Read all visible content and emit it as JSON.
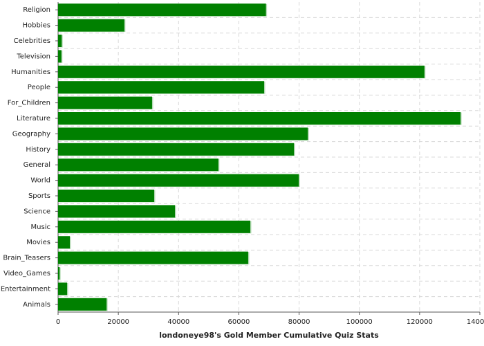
{
  "chart_data": {
    "type": "hbar",
    "xlabel": "londoneye98's Gold Member Cumulative Quiz Stats",
    "categories": [
      "Religion",
      "Hobbies",
      "Celebrities",
      "Television",
      "Humanities",
      "People",
      "For_Children",
      "Literature",
      "Geography",
      "History",
      "General",
      "World",
      "Sports",
      "Science",
      "Music",
      "Movies",
      "Brain_Teasers",
      "Video_Games",
      "Entertainment",
      "Animals"
    ],
    "values": [
      69000,
      22000,
      1200,
      1100,
      121600,
      68400,
      31200,
      133600,
      82900,
      78300,
      53200,
      79900,
      31900,
      38800,
      63800,
      3900,
      63100,
      500,
      3000,
      16100
    ],
    "color": "#008000",
    "xlim": [
      0,
      140000
    ],
    "xticks": [
      0,
      20000,
      40000,
      60000,
      80000,
      100000,
      120000,
      140000
    ],
    "grid": true
  }
}
